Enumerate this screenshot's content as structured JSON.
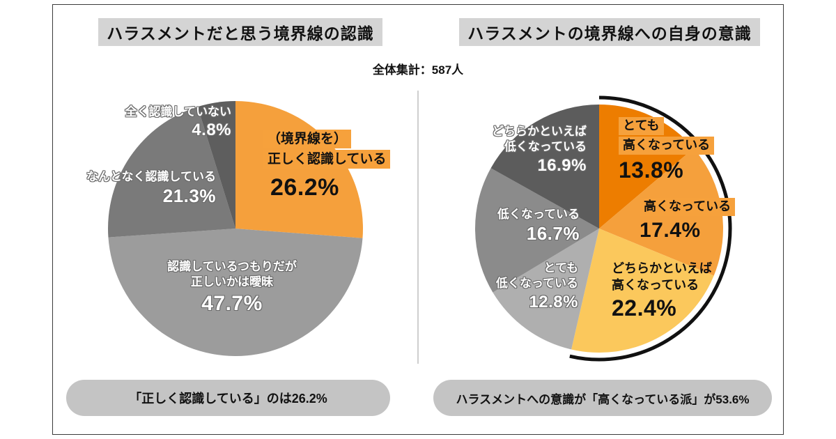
{
  "header": {
    "left_title": "ハラスメントだと思う境界線の認識",
    "right_title": "ハラスメントの境界線への自身の意識",
    "total_label": "全体集計：587人",
    "sample_size": 587
  },
  "chart_data": [
    {
      "type": "pie",
      "title": "ハラスメントだと思う境界線の認識",
      "start_angle": "top",
      "direction": "clockwise",
      "slices": [
        {
          "label": "（境界線を）正しく認識している",
          "lines": [
            "（境界線を）",
            "正しく認識している"
          ],
          "value": 26.2,
          "pct": "26.2%",
          "color": "#F5A03C",
          "emphasis": true
        },
        {
          "label": "認識しているつもりだが正しいかは曖昧",
          "lines": [
            "認識しているつもりだが",
            "正しいかは曖昧"
          ],
          "value": 47.7,
          "pct": "47.7%",
          "color": "#9C9C9C",
          "emphasis": false
        },
        {
          "label": "なんとなく認識している",
          "lines": [
            "なんとなく認識している"
          ],
          "value": 21.3,
          "pct": "21.3%",
          "color": "#7A7A7A",
          "emphasis": false
        },
        {
          "label": "全く認識していない",
          "lines": [
            "全く認識していない"
          ],
          "value": 4.8,
          "pct": "4.8%",
          "color": "#5E5E5E",
          "emphasis": false
        }
      ],
      "callout": "「正しく認識している」のは26.2%"
    },
    {
      "type": "pie",
      "title": "ハラスメントの境界線への自身の意識",
      "start_angle": "top",
      "direction": "clockwise",
      "slices": [
        {
          "label": "とても高くなっている",
          "lines": [
            "とても",
            "高くなっている"
          ],
          "value": 13.8,
          "pct": "13.8%",
          "color": "#ED7D00",
          "emphasis": true
        },
        {
          "label": "高くなっている",
          "lines": [
            "高くなっている"
          ],
          "value": 17.4,
          "pct": "17.4%",
          "color": "#F5A03C",
          "emphasis": true
        },
        {
          "label": "どちらかといえば高くなっている",
          "lines": [
            "どちらかといえば",
            "高くなっている"
          ],
          "value": 22.4,
          "pct": "22.4%",
          "color": "#FBC85C",
          "emphasis": false
        },
        {
          "label": "とても低くなっている",
          "lines": [
            "とても",
            "低くなっている"
          ],
          "value": 12.8,
          "pct": "12.8%",
          "color": "#AFAFAF",
          "emphasis": false
        },
        {
          "label": "低くなっている",
          "lines": [
            "低くなっている"
          ],
          "value": 16.7,
          "pct": "16.7%",
          "color": "#8B8B8B",
          "emphasis": false
        },
        {
          "label": "どちらかといえば低くなっている",
          "lines": [
            "どちらかといえば",
            "低くなっている"
          ],
          "value": 16.9,
          "pct": "16.9%",
          "color": "#5C5C5C",
          "emphasis": false
        }
      ],
      "highlight_arc": {
        "percent": 53.6,
        "color": "#111111"
      },
      "callout": "ハラスメントへの意識が「高くなっている派」が53.6%"
    }
  ],
  "colors": {
    "label_highlight_orange": "#F6A13C",
    "title_highlight_gray": "#D4D4D4",
    "callout_pill_gray": "#C4C4C4",
    "divider_gray": "#CFCFCF"
  }
}
